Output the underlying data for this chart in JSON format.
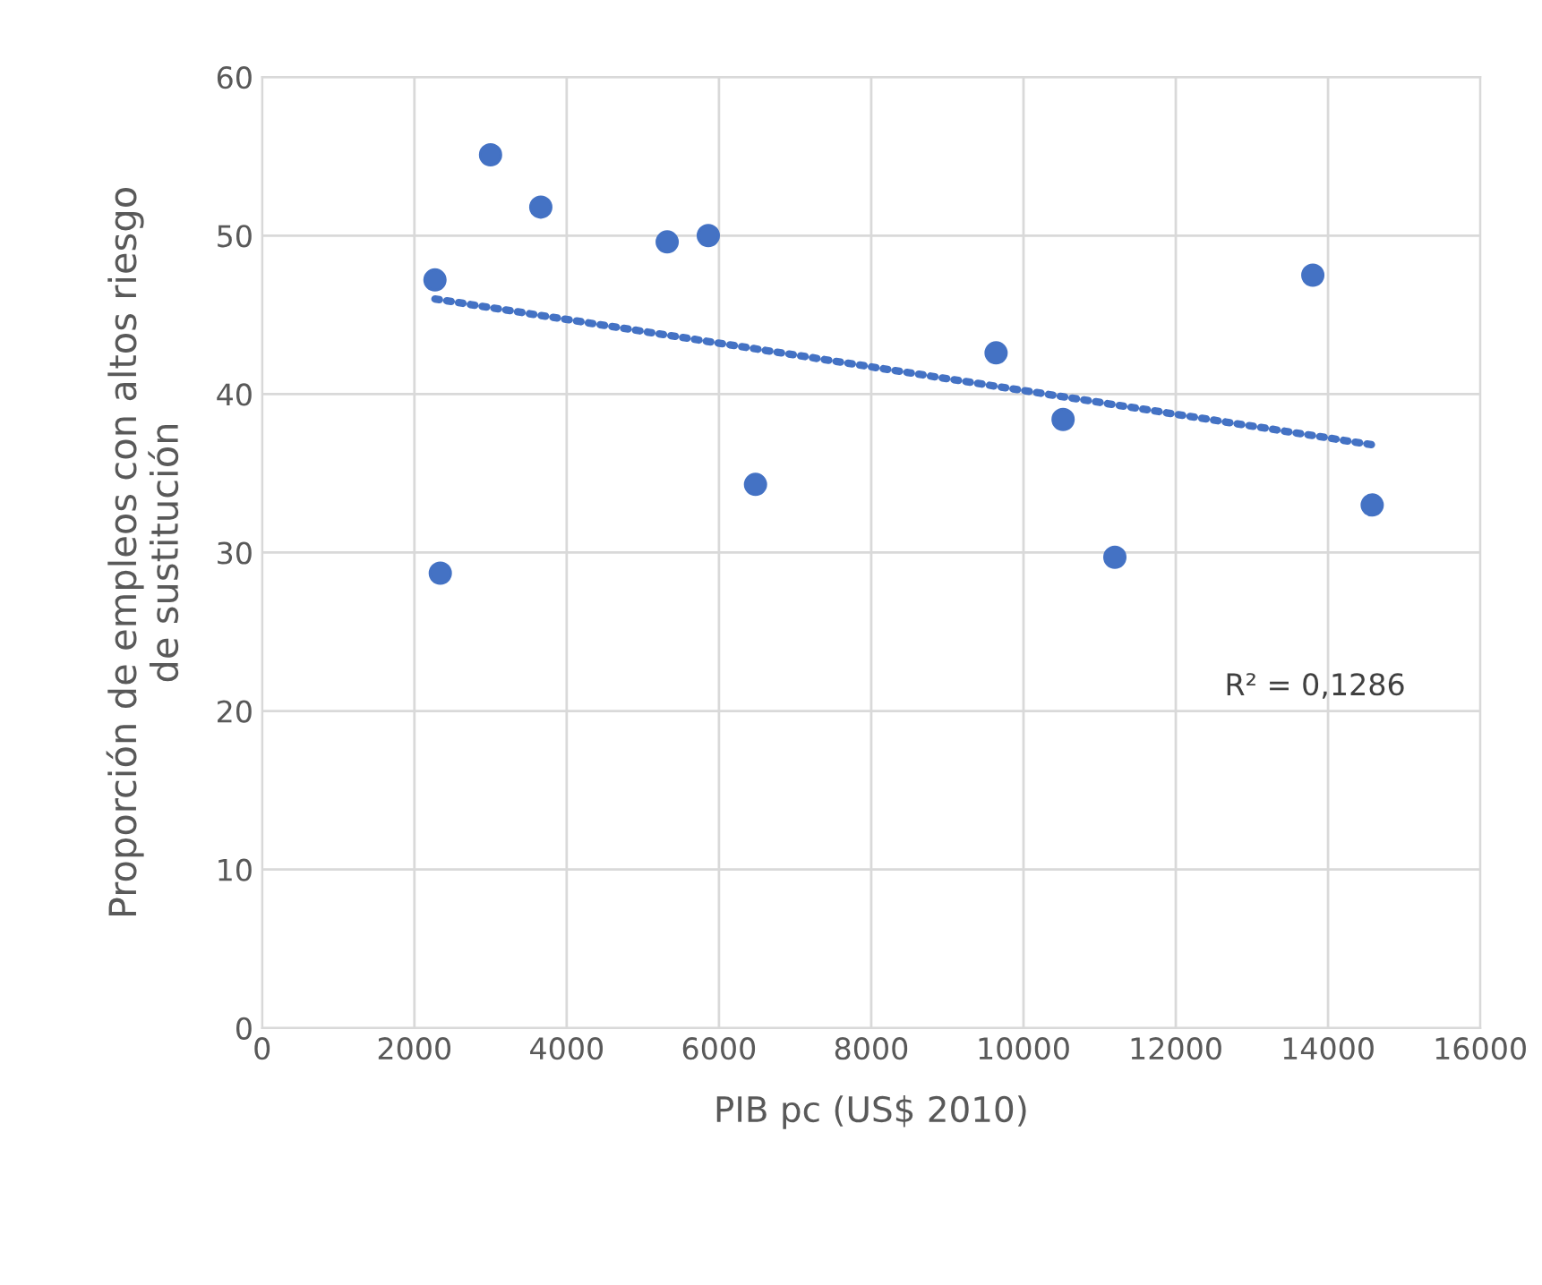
{
  "chart_data": {
    "type": "scatter",
    "xlabel": "PIB pc (US$ 2010)",
    "ylabel": "Proporción de empleos con altos riesgo\nde sustitución",
    "xlim": [
      0,
      16000
    ],
    "xticks": [
      0,
      2000,
      4000,
      6000,
      8000,
      10000,
      12000,
      14000,
      16000
    ],
    "ylim": [
      0,
      60
    ],
    "yticks": [
      0,
      10,
      20,
      30,
      40,
      50,
      60
    ],
    "grid": true,
    "series": [
      {
        "marker": "circle",
        "color": "#4472c4",
        "x": [
          2270,
          2340,
          3000,
          3660,
          5320,
          5860,
          6480,
          9640,
          10520,
          11200,
          13800,
          14580
        ],
        "values": [
          47.2,
          28.7,
          55.1,
          51.8,
          49.6,
          50.0,
          34.3,
          42.6,
          38.4,
          29.7,
          47.5,
          33.0
        ]
      },
      {
        "type": "line",
        "color": "#4472c4",
        "line_style": "dotted",
        "x": [
          2270,
          14580
        ],
        "values": [
          46.0,
          36.8
        ]
      }
    ],
    "annotations": [
      "R² = 0,1286"
    ]
  }
}
